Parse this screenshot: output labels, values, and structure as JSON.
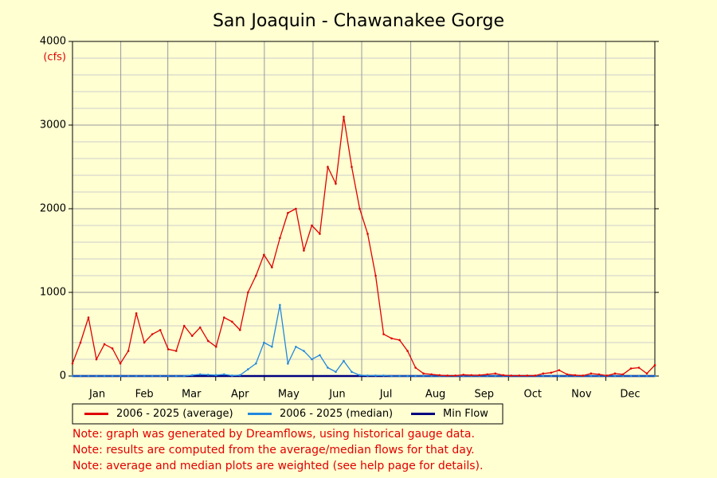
{
  "chart_data": {
    "type": "line",
    "title": "San Joaquin - Chawanakee Gorge",
    "y_unit": "(cfs)",
    "x": [
      0,
      5,
      10,
      15,
      20,
      25,
      30,
      35,
      40,
      45,
      50,
      55,
      60,
      65,
      70,
      75,
      80,
      85,
      90,
      95,
      100,
      105,
      110,
      115,
      120,
      125,
      130,
      135,
      140,
      145,
      150,
      155,
      160,
      165,
      170,
      175,
      180,
      185,
      190,
      195,
      200,
      205,
      210,
      215,
      220,
      225,
      230,
      235,
      240,
      245,
      250,
      255,
      260,
      265,
      270,
      275,
      280,
      285,
      290,
      295,
      300,
      305,
      310,
      315,
      320,
      325,
      330,
      335,
      340,
      345,
      350,
      355,
      360,
      365
    ],
    "xlim": [
      0,
      365
    ],
    "xticks": [
      {
        "value": 15.5,
        "label": "Jan"
      },
      {
        "value": 45,
        "label": "Feb"
      },
      {
        "value": 74.5,
        "label": "Mar"
      },
      {
        "value": 105,
        "label": "Apr"
      },
      {
        "value": 135.5,
        "label": "May"
      },
      {
        "value": 166,
        "label": "Jun"
      },
      {
        "value": 196.5,
        "label": "Jul"
      },
      {
        "value": 227.5,
        "label": "Aug"
      },
      {
        "value": 258,
        "label": "Sep"
      },
      {
        "value": 288.5,
        "label": "Oct"
      },
      {
        "value": 319,
        "label": "Nov"
      },
      {
        "value": 349.5,
        "label": "Dec"
      }
    ],
    "ylim": [
      0,
      4000
    ],
    "yticks": [
      0,
      1000,
      2000,
      3000,
      4000
    ],
    "grid": true,
    "series": [
      {
        "name": "2006 - 2025 (average)",
        "color": "#e00000",
        "values": [
          150,
          400,
          700,
          200,
          380,
          330,
          150,
          300,
          750,
          400,
          500,
          550,
          320,
          300,
          600,
          480,
          580,
          420,
          350,
          700,
          650,
          550,
          1000,
          1200,
          1450,
          1300,
          1650,
          1950,
          2000,
          1500,
          1800,
          1700,
          2500,
          2300,
          3100,
          2500,
          2000,
          1700,
          1200,
          500,
          450,
          430,
          300,
          100,
          30,
          20,
          10,
          5,
          5,
          15,
          10,
          10,
          20,
          30,
          10,
          5,
          5,
          5,
          5,
          30,
          40,
          70,
          20,
          10,
          5,
          30,
          20,
          5,
          30,
          20,
          90,
          100,
          30,
          130
        ]
      },
      {
        "name": "2006 - 2025 (median)",
        "color": "#2288dd",
        "values": [
          0,
          0,
          0,
          0,
          0,
          0,
          0,
          0,
          0,
          0,
          0,
          0,
          0,
          0,
          0,
          10,
          20,
          15,
          10,
          20,
          5,
          10,
          80,
          150,
          400,
          350,
          850,
          150,
          350,
          300,
          200,
          250,
          100,
          50,
          180,
          50,
          10,
          5,
          5,
          5,
          0,
          0,
          0,
          0,
          0,
          0,
          0,
          0,
          0,
          0,
          0,
          0,
          0,
          0,
          0,
          0,
          0,
          0,
          0,
          0,
          0,
          0,
          0,
          0,
          0,
          0,
          0,
          0,
          0,
          0,
          0,
          0,
          0,
          0
        ]
      },
      {
        "name": "Min Flow",
        "color": "#000080",
        "values": [
          0,
          0,
          0,
          0,
          0,
          0,
          0,
          0,
          0,
          0,
          0,
          0,
          0,
          0,
          0,
          0,
          0,
          0,
          0,
          0,
          0,
          0,
          0,
          0,
          0,
          0,
          0,
          0,
          0,
          0,
          0,
          0,
          0,
          0,
          0,
          0,
          0,
          0,
          0,
          0,
          0,
          0,
          0,
          0,
          0,
          0,
          0,
          0,
          0,
          0,
          0,
          0,
          0,
          0,
          0,
          0,
          0,
          0,
          0,
          0,
          0,
          0,
          0,
          0,
          0,
          0,
          0,
          0,
          0,
          0,
          0,
          0,
          0,
          0
        ]
      }
    ],
    "notes": [
      "Note: graph was generated by Dreamflows, using historical gauge data.",
      "Note: results are computed from the average/median flows for that day.",
      "Note: average and median plots are weighted (see help page for details)."
    ]
  }
}
